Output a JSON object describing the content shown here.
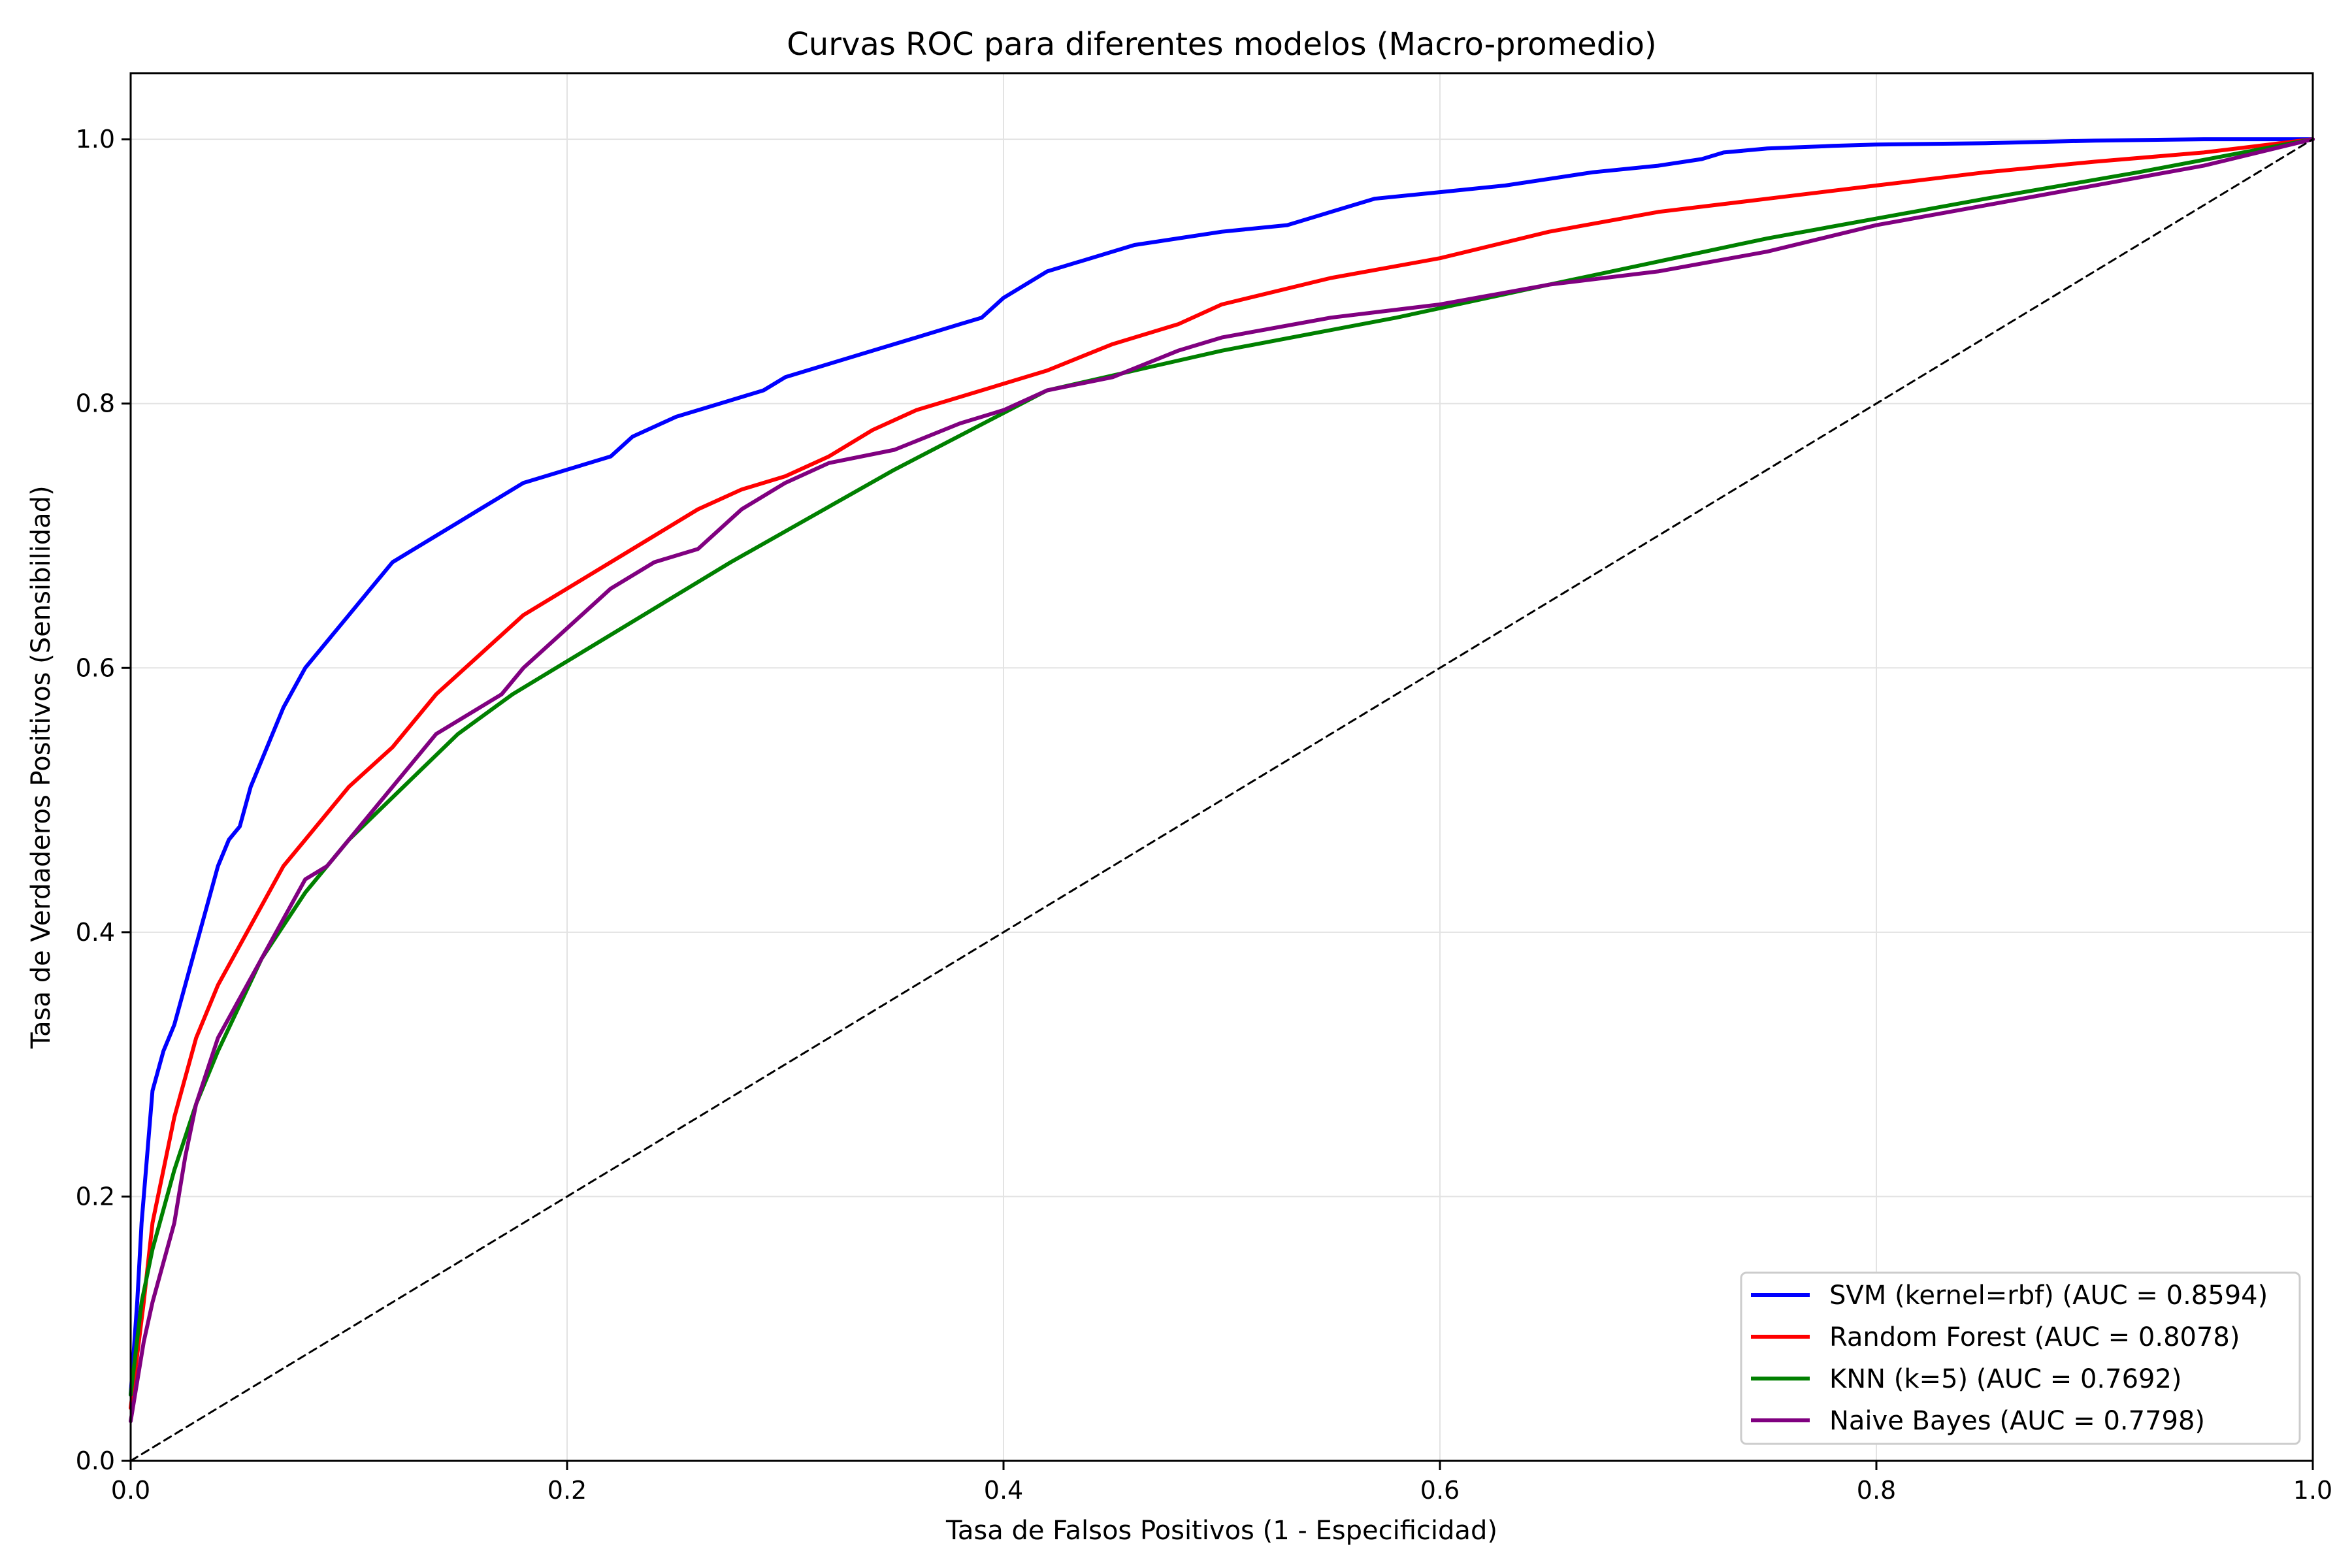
{
  "chart_data": {
    "type": "line",
    "title": "Curvas ROC para diferentes modelos (Macro-promedio)",
    "xlabel": "Tasa de Falsos Positivos (1 - Especificidad)",
    "ylabel": "Tasa de Verdaderos Positivos (Sensibilidad)",
    "xlim": [
      0.0,
      1.0
    ],
    "ylim": [
      0.0,
      1.05
    ],
    "xticks": [
      "0.0",
      "0.2",
      "0.4",
      "0.6",
      "0.8",
      "1.0"
    ],
    "yticks": [
      "0.0",
      "0.2",
      "0.4",
      "0.6",
      "0.8",
      "1.0"
    ],
    "grid": true,
    "legend_position": "bottom-right",
    "series": [
      {
        "name": "SVM (kernel=rbf) (AUC = 0.8594)",
        "color": "#0000ff",
        "x": [
          0.0,
          0.003,
          0.005,
          0.008,
          0.01,
          0.015,
          0.02,
          0.025,
          0.03,
          0.035,
          0.04,
          0.045,
          0.05,
          0.055,
          0.06,
          0.065,
          0.07,
          0.08,
          0.09,
          0.1,
          0.11,
          0.12,
          0.13,
          0.14,
          0.15,
          0.16,
          0.17,
          0.18,
          0.2,
          0.22,
          0.23,
          0.25,
          0.27,
          0.29,
          0.3,
          0.32,
          0.34,
          0.36,
          0.38,
          0.39,
          0.4,
          0.42,
          0.44,
          0.46,
          0.48,
          0.5,
          0.53,
          0.55,
          0.57,
          0.6,
          0.63,
          0.65,
          0.67,
          0.7,
          0.72,
          0.73,
          0.75,
          0.78,
          0.8,
          0.85,
          0.9,
          0.95,
          1.0
        ],
        "y": [
          0.05,
          0.12,
          0.18,
          0.24,
          0.28,
          0.31,
          0.33,
          0.36,
          0.39,
          0.42,
          0.45,
          0.47,
          0.48,
          0.51,
          0.53,
          0.55,
          0.57,
          0.6,
          0.62,
          0.64,
          0.66,
          0.68,
          0.69,
          0.7,
          0.71,
          0.72,
          0.73,
          0.74,
          0.75,
          0.76,
          0.775,
          0.79,
          0.8,
          0.81,
          0.82,
          0.83,
          0.84,
          0.85,
          0.86,
          0.865,
          0.88,
          0.9,
          0.91,
          0.92,
          0.925,
          0.93,
          0.935,
          0.945,
          0.955,
          0.96,
          0.965,
          0.97,
          0.975,
          0.98,
          0.985,
          0.99,
          0.993,
          0.995,
          0.996,
          0.997,
          0.999,
          1.0,
          1.0
        ]
      },
      {
        "name": "Random Forest (AUC = 0.8078)",
        "color": "#ff0000",
        "x": [
          0.0,
          0.003,
          0.006,
          0.01,
          0.015,
          0.02,
          0.025,
          0.03,
          0.04,
          0.05,
          0.06,
          0.07,
          0.08,
          0.1,
          0.12,
          0.14,
          0.16,
          0.18,
          0.2,
          0.22,
          0.24,
          0.26,
          0.28,
          0.3,
          0.32,
          0.34,
          0.36,
          0.38,
          0.4,
          0.42,
          0.45,
          0.48,
          0.5,
          0.55,
          0.6,
          0.65,
          0.7,
          0.75,
          0.8,
          0.85,
          0.9,
          0.95,
          1.0
        ],
        "y": [
          0.04,
          0.08,
          0.12,
          0.18,
          0.22,
          0.26,
          0.29,
          0.32,
          0.36,
          0.39,
          0.42,
          0.45,
          0.47,
          0.51,
          0.54,
          0.58,
          0.61,
          0.64,
          0.66,
          0.68,
          0.7,
          0.72,
          0.735,
          0.745,
          0.76,
          0.78,
          0.795,
          0.805,
          0.815,
          0.825,
          0.845,
          0.86,
          0.875,
          0.895,
          0.91,
          0.93,
          0.945,
          0.955,
          0.965,
          0.975,
          0.983,
          0.99,
          1.0
        ]
      },
      {
        "name": "KNN (k=5) (AUC = 0.7692)",
        "color": "#008000",
        "x": [
          0.0,
          0.005,
          0.01,
          0.02,
          0.03,
          0.04,
          0.06,
          0.08,
          0.1,
          0.125,
          0.15,
          0.175,
          0.275,
          0.35,
          0.42,
          0.5,
          0.58,
          0.65,
          0.75,
          0.85,
          0.92,
          1.0
        ],
        "y": [
          0.05,
          0.12,
          0.16,
          0.22,
          0.27,
          0.31,
          0.38,
          0.43,
          0.47,
          0.51,
          0.55,
          0.58,
          0.68,
          0.75,
          0.81,
          0.84,
          0.865,
          0.89,
          0.925,
          0.955,
          0.975,
          1.0
        ]
      },
      {
        "name": "Naive Bayes (AUC = 0.7798)",
        "color": "#800080",
        "x": [
          0.0,
          0.003,
          0.006,
          0.01,
          0.015,
          0.02,
          0.025,
          0.03,
          0.04,
          0.05,
          0.06,
          0.07,
          0.08,
          0.09,
          0.1,
          0.11,
          0.12,
          0.13,
          0.14,
          0.15,
          0.17,
          0.18,
          0.2,
          0.22,
          0.24,
          0.26,
          0.28,
          0.3,
          0.32,
          0.35,
          0.38,
          0.4,
          0.42,
          0.45,
          0.48,
          0.5,
          0.55,
          0.6,
          0.65,
          0.7,
          0.75,
          0.8,
          0.85,
          0.9,
          0.95,
          1.0
        ],
        "y": [
          0.03,
          0.06,
          0.09,
          0.12,
          0.15,
          0.18,
          0.23,
          0.27,
          0.32,
          0.35,
          0.38,
          0.41,
          0.44,
          0.45,
          0.47,
          0.49,
          0.51,
          0.53,
          0.55,
          0.56,
          0.58,
          0.6,
          0.63,
          0.66,
          0.68,
          0.69,
          0.72,
          0.74,
          0.755,
          0.765,
          0.785,
          0.795,
          0.81,
          0.82,
          0.84,
          0.85,
          0.865,
          0.875,
          0.89,
          0.9,
          0.915,
          0.935,
          0.95,
          0.965,
          0.98,
          1.0
        ]
      },
      {
        "name": "",
        "color": "#000000",
        "dashed": true,
        "x": [
          0.0,
          1.0
        ],
        "y": [
          0.0,
          1.0
        ]
      }
    ]
  }
}
